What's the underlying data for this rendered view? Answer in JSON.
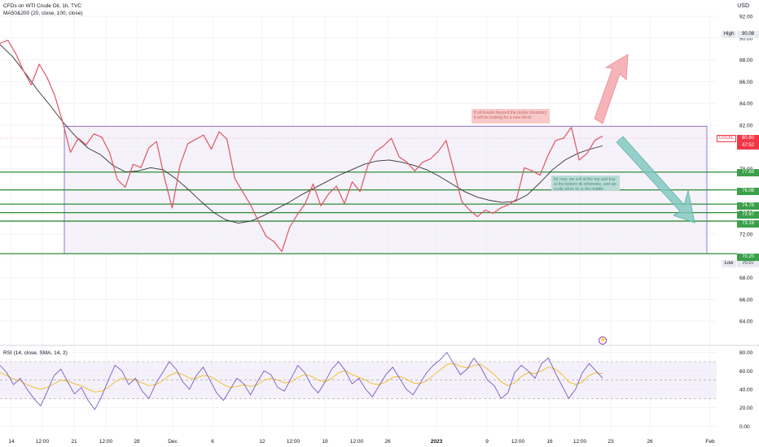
{
  "header": {
    "title": "CFDs on WTI Crude Oil, 1h, TVC",
    "indicator": "MA50&200 (20, close, 100, close)",
    "currency": "USD",
    "rsi_label": "RSI (14, close, SMA, 14, 2)"
  },
  "colors": {
    "purple_box": "#7e57c2",
    "green_line": "#2e8b36",
    "red_arrow": "#f4a0a6",
    "teal_arrow": "#7cc7bd",
    "price_line": "#e05462",
    "ma_line": "#333333",
    "rsi_line": "#7e57c2",
    "green_tag": "#3aa04a",
    "red_tag": "#f23645"
  },
  "annotations": {
    "red_note": "If oil breaks beyond the purple boundary it will be looking for a new trend",
    "teal_note": "for now, we sell at the top and buy at the bottom till otherwise, and we scalp when its in the middle"
  },
  "price_tags": {
    "high_label": "High",
    "high_value": "90.08",
    "low_label": "Low",
    "low_value": "70.07",
    "symbol": "USOIL",
    "current": "80.80",
    "countdown": "47:52",
    "levels": [
      "77.69",
      "76.06",
      "74.75",
      "73.97",
      "73.19",
      "70.20"
    ]
  },
  "chart_data": [
    {
      "type": "line",
      "title": "CFDs on WTI Crude Oil, 1h, TVC",
      "ylim": [
        62,
        92
      ],
      "yticks": [
        64.0,
        66.0,
        68.0,
        70.0,
        72.0,
        74.0,
        76.0,
        78.0,
        80.0,
        82.0,
        84.0,
        86.0,
        88.0,
        90.0,
        92.0
      ],
      "xticks": [
        "14",
        "12:00",
        "21",
        "12:00",
        "28",
        "Dec",
        "6",
        "12",
        "12:00",
        "19",
        "12:00",
        "26",
        "2023",
        "9",
        "12:00",
        "16",
        "12:00",
        "23",
        "26",
        "Feb"
      ],
      "series": [
        {
          "values": [
            89.5,
            89.8,
            88.6,
            87.0,
            85.7,
            87.6,
            86.4,
            84.7,
            82.3,
            79.5,
            80.8,
            80.2,
            81.2,
            80.9,
            79.5,
            77.0,
            76.3,
            78.4,
            78.1,
            79.9,
            80.5,
            77.2,
            74.4,
            78.3,
            80.3,
            80.7,
            81.1,
            79.8,
            81.4,
            80.7,
            77.1,
            75.9,
            74.7,
            73.2,
            71.8,
            71.3,
            70.4,
            72.6,
            73.8,
            74.8,
            76.6,
            74.6,
            75.7,
            76.4,
            74.8,
            76.8,
            75.9,
            78.3,
            79.6,
            80.1,
            80.8,
            79.1,
            78.6,
            77.8,
            78.6,
            78.9,
            79.6,
            80.6,
            77.8,
            75.0,
            74.2,
            73.6,
            74.2,
            73.9,
            74.4,
            74.7,
            75.2,
            78.1,
            77.8,
            77.4,
            79.2,
            80.6,
            80.8,
            81.8,
            78.8,
            79.4,
            80.6,
            81.0
          ]
        },
        {
          "name": "MA50&200",
          "values": [
            89.4,
            88.3,
            86.8,
            85.2,
            83.8,
            82.3,
            81.0,
            79.9,
            79.3,
            78.3,
            77.7,
            77.8,
            78.1,
            77.9,
            77.1,
            76.1,
            75.0,
            74.0,
            73.3,
            73.0,
            73.2,
            73.7,
            74.3,
            74.9,
            75.6,
            76.2,
            76.8,
            77.4,
            77.9,
            78.4,
            78.7,
            78.8,
            78.6,
            78.3,
            77.9,
            77.3,
            76.6,
            75.9,
            75.4,
            75.1,
            74.9,
            75.0,
            75.6,
            76.7,
            77.9,
            78.8,
            79.4,
            79.8,
            80.1
          ]
        }
      ],
      "levels": [
        77.69,
        76.06,
        74.75,
        73.97,
        73.19,
        70.2
      ],
      "range_box": [
        70.2,
        81.9
      ],
      "high": 90.08,
      "low": 70.07,
      "current": 80.8,
      "grid": true
    },
    {
      "type": "line",
      "title": "RSI (14, close, SMA, 14, 2)",
      "ylim": [
        -5,
        85
      ],
      "yticks": [
        0.0,
        20.0,
        40.0,
        60.0,
        80.0
      ],
      "bands": [
        30,
        50,
        70
      ],
      "series": [
        {
          "values": [
            66,
            58,
            45,
            52,
            40,
            30,
            22,
            38,
            55,
            62,
            48,
            35,
            42,
            28,
            18,
            32,
            50,
            66,
            60,
            45,
            52,
            38,
            30,
            46,
            58,
            70,
            62,
            48,
            40,
            55,
            64,
            50,
            36,
            28,
            40,
            52,
            46,
            34,
            48,
            60,
            56,
            42,
            38,
            52,
            66,
            58,
            44,
            36,
            48,
            62,
            70,
            60,
            46,
            52,
            40,
            32,
            44,
            56,
            64,
            52,
            40,
            34,
            46,
            58,
            66,
            72,
            80,
            68,
            56,
            62,
            74,
            64,
            50,
            44,
            30,
            36,
            58,
            66,
            60,
            52,
            68,
            74,
            58,
            44,
            30,
            40,
            58,
            68,
            60,
            52
          ]
        },
        {
          "values": [
            58,
            55,
            51,
            49,
            45,
            42,
            40,
            42,
            46,
            50,
            49,
            46,
            44,
            40,
            37,
            38,
            42,
            48,
            52,
            51,
            50,
            47,
            44,
            45,
            49,
            55,
            58,
            56,
            52,
            52,
            55,
            54,
            50,
            45,
            42,
            43,
            45,
            43,
            45,
            50,
            52,
            50,
            47,
            48,
            53,
            56,
            54,
            50,
            48,
            52,
            58,
            60,
            56,
            53,
            50,
            46,
            45,
            48,
            53,
            54,
            51,
            47,
            46,
            49,
            55,
            61,
            67,
            68,
            65,
            63,
            66,
            67,
            62,
            56,
            48,
            44,
            47,
            54,
            58,
            57,
            60,
            64,
            62,
            56,
            48,
            45,
            48,
            55,
            58,
            57
          ]
        }
      ],
      "grid": true
    }
  ]
}
